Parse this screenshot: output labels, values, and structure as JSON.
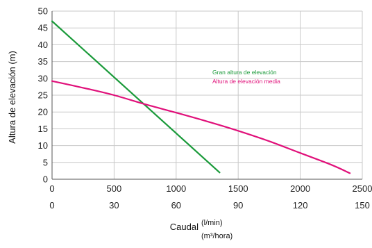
{
  "chart_data": {
    "type": "line",
    "ylabel": "Altura de elevación (m)",
    "xlabel": "Caudal",
    "x_unit_primary": "(l/min)",
    "x_unit_secondary": "(m³/hora)",
    "xlim": [
      0,
      2500
    ],
    "ylim": [
      0,
      50
    ],
    "x_ticks": [
      0,
      500,
      1000,
      1500,
      2000,
      2500
    ],
    "x_ticks_secondary": [
      0,
      30,
      60,
      90,
      120,
      150
    ],
    "y_ticks": [
      0,
      5,
      10,
      15,
      20,
      25,
      30,
      35,
      40,
      45,
      50
    ],
    "grid": true,
    "legend_position": "right",
    "series": [
      {
        "name": "Gran altura de elevación",
        "color": "#1a9a3a",
        "points": [
          [
            0,
            47
          ],
          [
            1350,
            2
          ]
        ]
      },
      {
        "name": "Altura de elevación media",
        "color": "#e0107a",
        "points": [
          [
            0,
            29.2
          ],
          [
            250,
            27.2
          ],
          [
            500,
            25
          ],
          [
            750,
            22.3
          ],
          [
            1000,
            19.8
          ],
          [
            1250,
            17.2
          ],
          [
            1500,
            14.4
          ],
          [
            1750,
            11.3
          ],
          [
            2000,
            7.8
          ],
          [
            2250,
            4.3
          ],
          [
            2400,
            1.8
          ]
        ]
      }
    ]
  }
}
